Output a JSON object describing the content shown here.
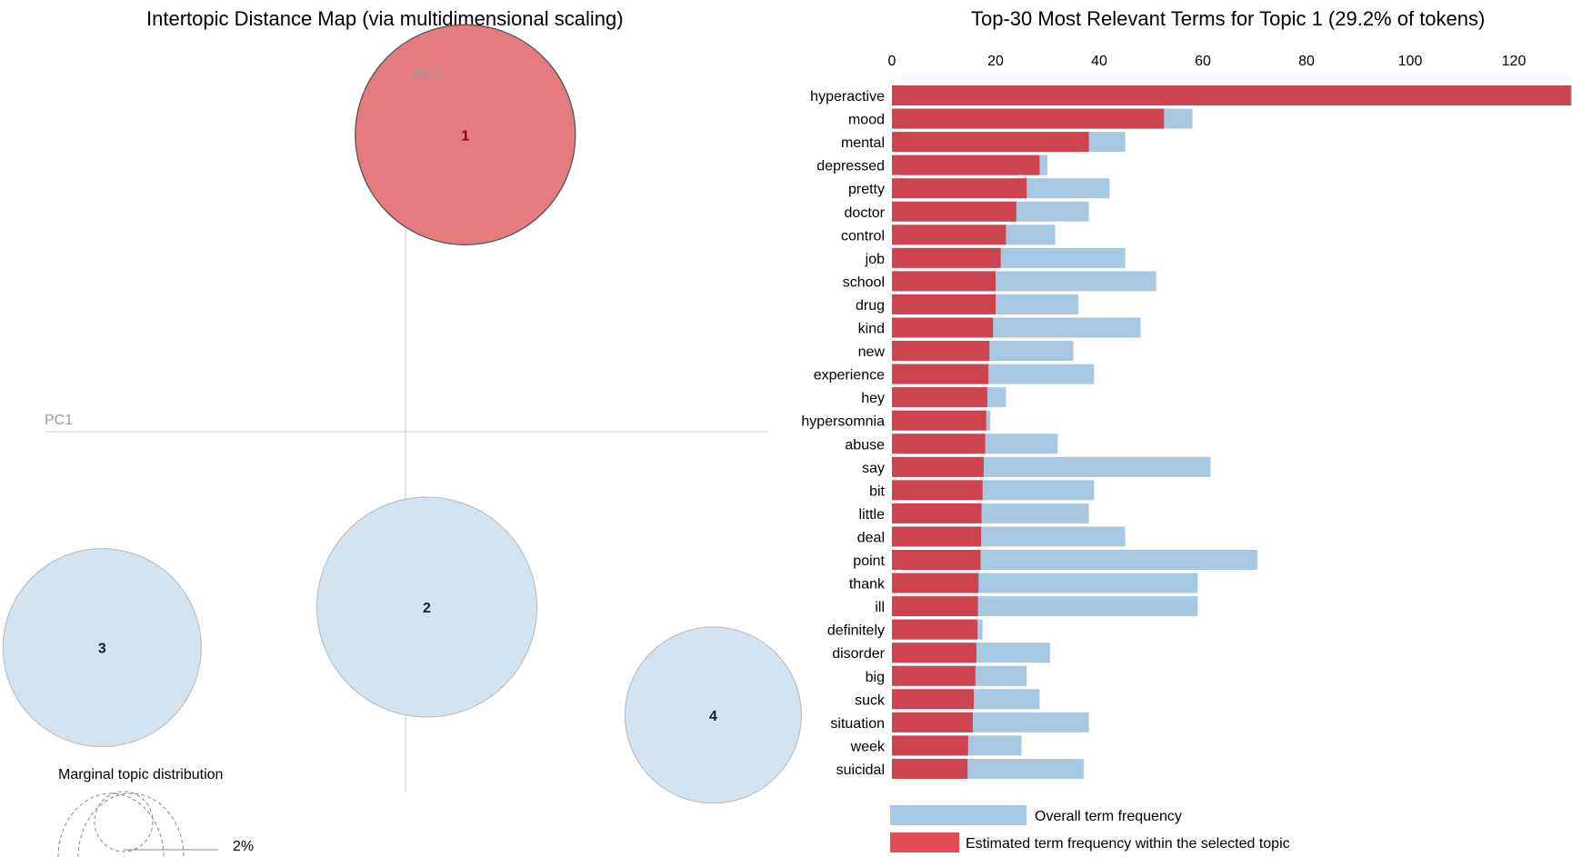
{
  "left_panel": {
    "title": "Intertopic Distance Map (via multidimensional scaling)",
    "pc1_label": "PC1",
    "pc2_label": "PC2",
    "marginal_label": "Marginal topic distribution",
    "marginal_pct": "2%"
  },
  "right_panel": {
    "title": "Top-30 Most Relevant Terms for Topic 1 (29.2% of tokens)",
    "legend_overall": "Overall term frequency",
    "legend_estimated": "Estimated term frequency within the selected topic"
  },
  "colors": {
    "overall_bar": "#a6c8e2",
    "topic_bar": "#cd444f",
    "selected_topic_circle": "#e47c7f",
    "topic_circle": "#d3e3ef",
    "legend_topic": "#df4e52"
  },
  "chart_data": [
    {
      "type": "scatter",
      "title": "Intertopic Distance Map (via multidimensional scaling)",
      "xlabel": "PC1",
      "ylabel": "PC2",
      "selected_topic": "1",
      "topics": [
        {
          "label": "1",
          "x": 0.14,
          "y": 0.66
        },
        {
          "label": "2",
          "x": 0.05,
          "y": -0.39
        },
        {
          "label": "3",
          "x": -0.71,
          "y": -0.48
        },
        {
          "label": "4",
          "x": 0.72,
          "y": -0.63
        }
      ]
    },
    {
      "type": "bar",
      "title": "Top-30 Most Relevant Terms for Topic 1 (29.2% of tokens)",
      "orientation": "horizontal",
      "xlim": [
        0,
        132
      ],
      "x_ticks": [
        0,
        20,
        40,
        60,
        80,
        100,
        120
      ],
      "categories": [
        "hyperactive",
        "mood",
        "mental",
        "depressed",
        "pretty",
        "doctor",
        "control",
        "job",
        "school",
        "drug",
        "kind",
        "new",
        "experience",
        "hey",
        "hypersomnia",
        "abuse",
        "say",
        "bit",
        "little",
        "deal",
        "point",
        "thank",
        "ill",
        "definitely",
        "disorder",
        "big",
        "suck",
        "situation",
        "week",
        "suicidal"
      ],
      "series": [
        {
          "name": "Overall term frequency",
          "values": [
            132,
            58,
            45,
            30,
            42,
            38,
            31.5,
            45,
            51,
            36,
            48,
            35,
            39,
            22,
            19,
            32,
            61.5,
            39,
            38,
            45,
            70.5,
            59,
            59,
            17.5,
            30.5,
            26,
            28.5,
            38,
            25,
            37
          ]
        },
        {
          "name": "Estimated term frequency within the selected topic",
          "values": [
            131,
            52.5,
            38,
            28.5,
            26,
            24,
            22,
            21,
            20,
            20,
            19.5,
            18.8,
            18.6,
            18.4,
            18.2,
            18,
            17.7,
            17.5,
            17.3,
            17.2,
            17.1,
            16.7,
            16.6,
            16.5,
            16.3,
            16.1,
            15.8,
            15.6,
            14.7,
            14.6
          ]
        }
      ]
    }
  ]
}
